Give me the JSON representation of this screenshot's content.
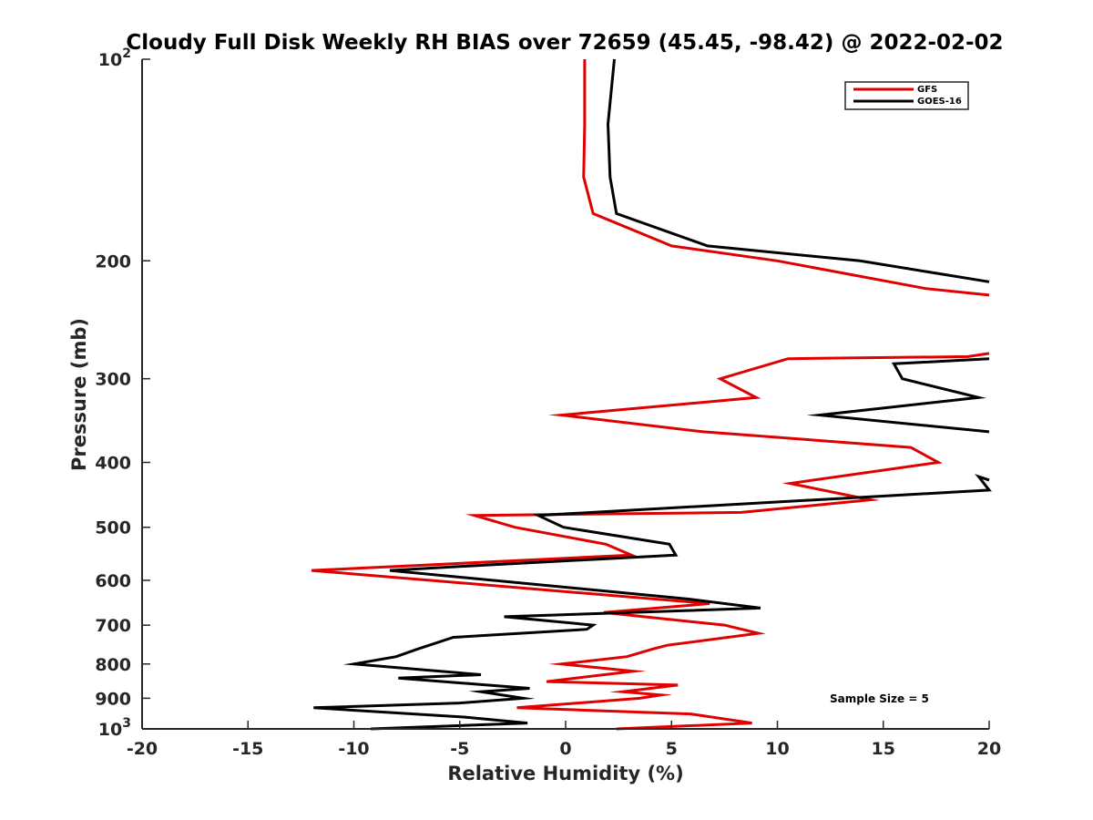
{
  "chart_data": {
    "type": "line",
    "title": "Cloudy Full Disk Weekly RH BIAS over 72659 (45.45, -98.42) @ 2022-02-02",
    "xlabel": "Relative Humidity (%)",
    "ylabel": "Pressure (mb)",
    "xlim": [
      -20,
      20
    ],
    "ylim": [
      100,
      1000
    ],
    "yscale": "log",
    "y_reversed": true,
    "grid": false,
    "legend_position": "top-right",
    "x_ticks": [
      "-20",
      "-15",
      "-10",
      "-5",
      "0",
      "5",
      "10",
      "15",
      "20"
    ],
    "y_ticks": [
      {
        "value": 100,
        "base": "10",
        "exp": "2"
      },
      {
        "value": 200,
        "label": "200"
      },
      {
        "value": 300,
        "label": "300"
      },
      {
        "value": 400,
        "label": "400"
      },
      {
        "value": 500,
        "label": "500"
      },
      {
        "value": 600,
        "label": "600"
      },
      {
        "value": 700,
        "label": "700"
      },
      {
        "value": 800,
        "label": "800"
      },
      {
        "value": 900,
        "label": "900"
      },
      {
        "value": 1000,
        "base": "10",
        "exp": "3"
      }
    ],
    "annotation": "Sample Size = 5",
    "series": [
      {
        "name": "GFS",
        "color": "#e00000",
        "segments": [
          [
            [
              0.9,
              100
            ],
            [
              0.9,
              125
            ],
            [
              0.85,
              150
            ],
            [
              1.3,
              170
            ],
            [
              5,
              190
            ],
            [
              10,
              200
            ],
            [
              17,
              220
            ],
            [
              20,
              225
            ]
          ],
          [
            [
              20,
              275
            ],
            [
              19,
              278
            ],
            [
              10.5,
              280
            ],
            [
              7.3,
              300
            ],
            [
              9,
              320
            ],
            [
              -0.2,
              340
            ],
            [
              6.5,
              360
            ],
            [
              16.3,
              380
            ],
            [
              17.6,
              400
            ],
            [
              10.6,
              430
            ],
            [
              14.4,
              455
            ],
            [
              8.3,
              475
            ],
            [
              -4.3,
              480
            ],
            [
              -2.4,
              500
            ],
            [
              1.9,
              530
            ],
            [
              3.1,
              550
            ],
            [
              -7,
              570
            ],
            [
              -12,
              580
            ],
            [
              6.8,
              650
            ],
            [
              1.8,
              670
            ],
            [
              7.5,
              700
            ],
            [
              9.1,
              720
            ],
            [
              4.8,
              750
            ],
            [
              4.1,
              760
            ],
            [
              2.9,
              780
            ],
            [
              -0.2,
              800
            ],
            [
              3.2,
              820
            ],
            [
              -0.9,
              850
            ],
            [
              5.3,
              860
            ],
            [
              2.7,
              880
            ],
            [
              4.5,
              890
            ],
            [
              3.5,
              900
            ],
            [
              -2.3,
              930
            ],
            [
              5.9,
              950
            ],
            [
              8.8,
              980
            ],
            [
              2.4,
              1000
            ]
          ]
        ]
      },
      {
        "name": "GOES-16",
        "color": "#000000",
        "segments": [
          [
            [
              2.3,
              100
            ],
            [
              2,
              125
            ],
            [
              2.1,
              150
            ],
            [
              2.4,
              170
            ],
            [
              6.7,
              190
            ],
            [
              13.9,
              200
            ],
            [
              20,
              215
            ]
          ],
          [
            [
              20,
              280
            ],
            [
              15.5,
              285
            ],
            [
              15.9,
              300
            ],
            [
              19.5,
              320
            ],
            [
              12,
              340
            ],
            [
              20,
              360
            ]
          ],
          [
            [
              20,
              425
            ],
            [
              19.5,
              420
            ],
            [
              20,
              440
            ],
            [
              14.5,
              450
            ],
            [
              -1.3,
              480
            ],
            [
              -0.1,
              500
            ],
            [
              4.9,
              530
            ],
            [
              5.2,
              550
            ],
            [
              -4.1,
              570
            ],
            [
              -8.3,
              580
            ],
            [
              5.8,
              640
            ],
            [
              9.2,
              660
            ],
            [
              -2.9,
              680
            ],
            [
              1.3,
              700
            ],
            [
              1,
              710
            ],
            [
              -5.3,
              730
            ],
            [
              -7,
              760
            ],
            [
              -8,
              780
            ],
            [
              -10,
              800
            ],
            [
              -4,
              830
            ],
            [
              -7.9,
              840
            ],
            [
              -1.7,
              870
            ],
            [
              -4,
              880
            ],
            [
              -2,
              900
            ],
            [
              -5,
              915
            ],
            [
              -11.9,
              930
            ],
            [
              -4.8,
              960
            ],
            [
              -1.8,
              980
            ],
            [
              -9.2,
              1000
            ]
          ]
        ]
      }
    ]
  }
}
